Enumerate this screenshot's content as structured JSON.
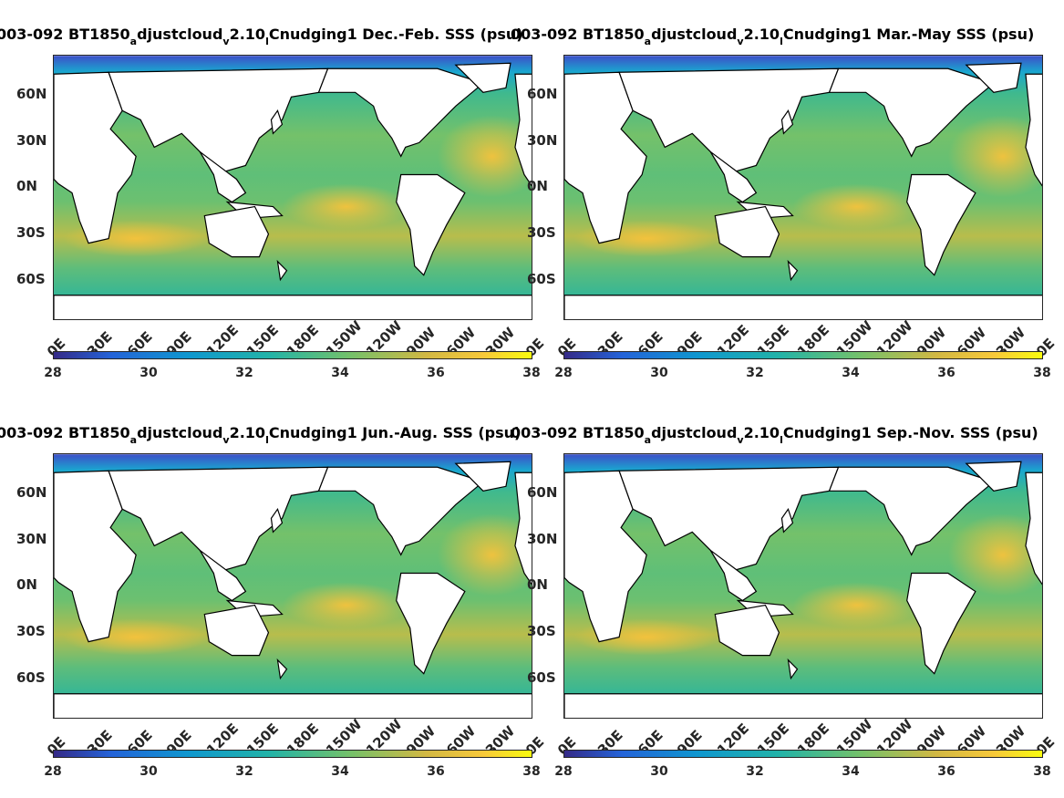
{
  "colors": {
    "colormap": [
      "#352a87",
      "#2463d8",
      "#0f97cf",
      "#22b3a8",
      "#74c16a",
      "#d2b843",
      "#f8c93a",
      "#f9fb0e"
    ],
    "land": "#ffffff",
    "coast": "#000000"
  },
  "map_data": {
    "projection": "equirectangular",
    "central_longitude": "180",
    "variable": "SSS",
    "colorbar_range": [
      28,
      38
    ]
  },
  "axes": {
    "lat_labels": [
      "60N",
      "30N",
      "0N",
      "30S",
      "60S"
    ],
    "lon_labels": [
      "0E",
      "30E",
      "60E",
      "90E",
      "120E",
      "150E",
      "180E",
      "150W",
      "120W",
      "90W",
      "60W",
      "30W",
      "0E"
    ],
    "cbar_ticks": [
      "28",
      "30",
      "32",
      "34",
      "36",
      "38"
    ]
  },
  "panels": [
    {
      "title_a": "003-092 BT1850",
      "sub1": "a",
      "title_b": "djustcloud",
      "sub2": "v",
      "title_c": "2.10",
      "sub3": "l",
      "title_d": "Cnudging1 Dec.-Feb. SSS (psu)"
    },
    {
      "title_a": "003-092 BT1850",
      "sub1": "a",
      "title_b": "djustcloud",
      "sub2": "v",
      "title_c": "2.10",
      "sub3": "l",
      "title_d": "Cnudging1 Mar.-May SSS (psu)"
    },
    {
      "title_a": "003-092 BT1850",
      "sub1": "a",
      "title_b": "djustcloud",
      "sub2": "v",
      "title_c": "2.10",
      "sub3": "l",
      "title_d": "Cnudging1 Jun.-Aug. SSS (psu)"
    },
    {
      "title_a": "003-092 BT1850",
      "sub1": "a",
      "title_b": "djustcloud",
      "sub2": "v",
      "title_c": "2.10",
      "sub3": "l",
      "title_d": "Cnudging1 Sep.-Nov. SSS (psu)"
    }
  ]
}
